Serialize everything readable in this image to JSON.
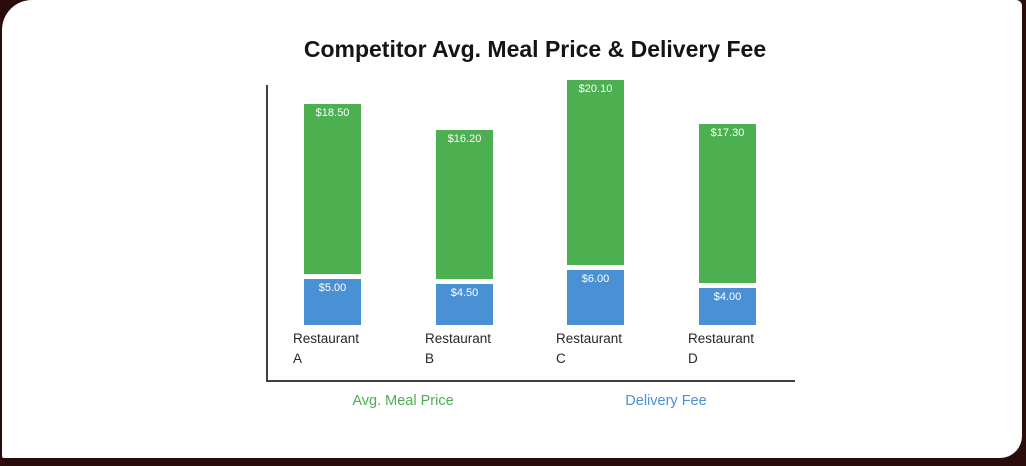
{
  "page": {
    "background_color": "#2a0d0b",
    "card_color": "#ffffff"
  },
  "chart": {
    "title": "Competitor Avg. Meal Price & Delivery Fee"
  },
  "chart_data": {
    "type": "bar",
    "stacked": true,
    "title": "Competitor Avg. Meal Price & Delivery Fee",
    "categories": [
      "Restaurant A",
      "Restaurant B",
      "Restaurant C",
      "Restaurant D"
    ],
    "series": [
      {
        "name": "Avg. Meal Price",
        "color": "#4CAF50",
        "values": [
          18.5,
          16.2,
          20.1,
          17.3
        ],
        "labels": [
          "$18.50",
          "$16.20",
          "$20.10",
          "$17.30"
        ]
      },
      {
        "name": "Delivery Fee",
        "color": "#4A90D4",
        "values": [
          5.0,
          4.5,
          6.0,
          4.0
        ],
        "labels": [
          "$5.00",
          "$4.50",
          "$6.00",
          "$4.00"
        ]
      }
    ],
    "value_prefix": "$",
    "xlabel": "",
    "ylabel": "",
    "grid": false,
    "legend_position": "bottom",
    "axis_color": "#404040",
    "value_label_color": "#ffffff",
    "category_label_color": "#272727"
  }
}
